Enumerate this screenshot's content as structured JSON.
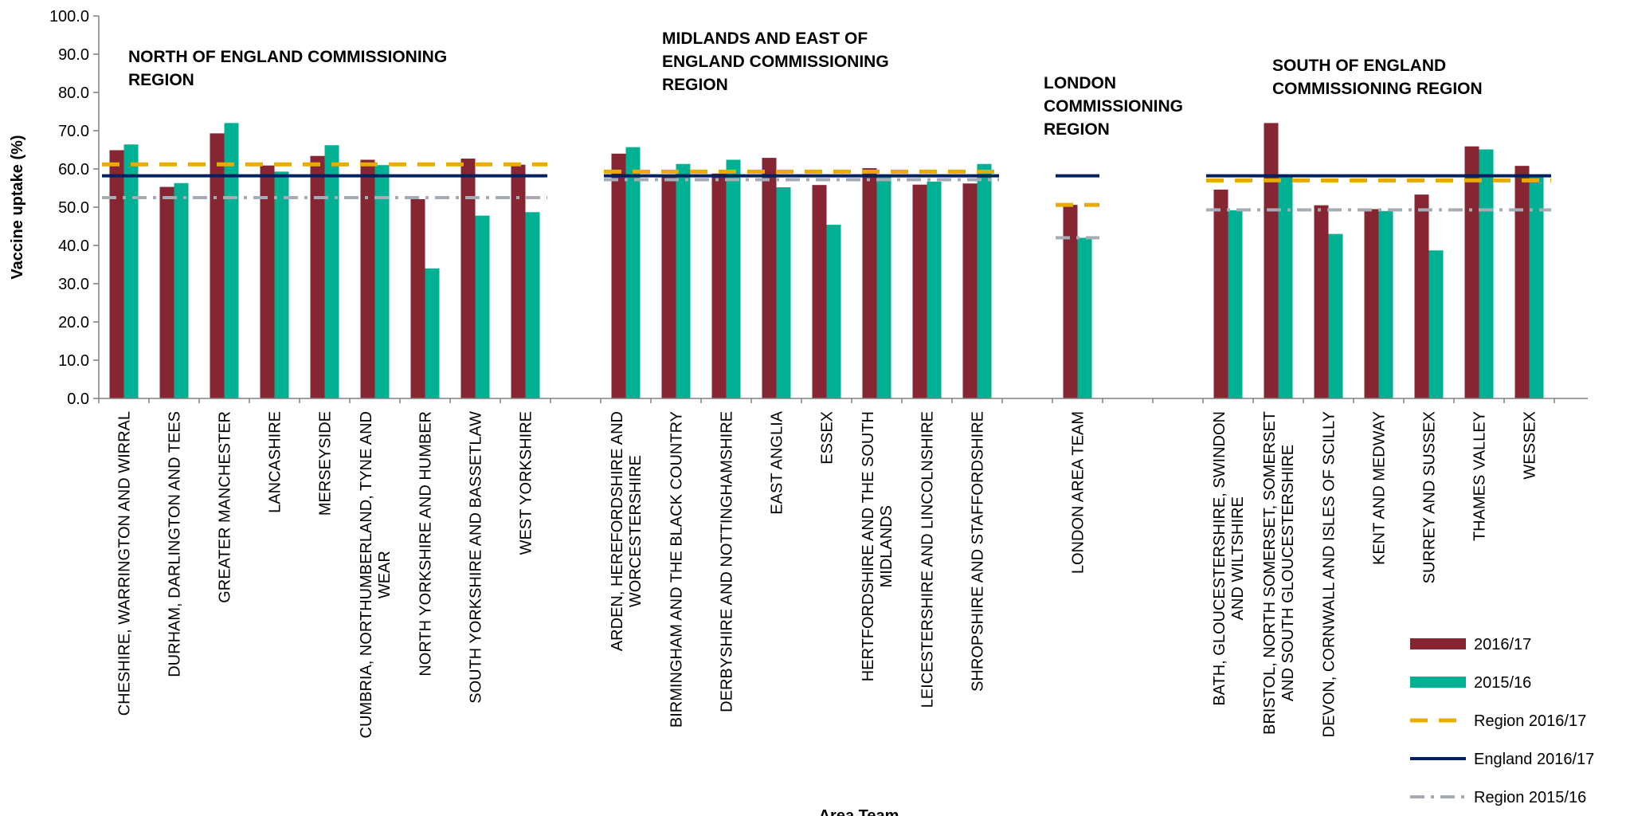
{
  "chart_data": {
    "type": "bar",
    "title": "",
    "xlabel": "Area Team",
    "ylabel": "Vaccine uptake (%)",
    "ylim": [
      0,
      100
    ],
    "y_ticks": [
      "0.0",
      "10.0",
      "20.0",
      "30.0",
      "40.0",
      "50.0",
      "60.0",
      "70.0",
      "80.0",
      "90.0",
      "100.0"
    ],
    "grid": false,
    "legend_position": "bottom-right",
    "regions": [
      {
        "label": "NORTH OF ENGLAND COMMISSIONING REGION",
        "label_lines": [
          "NORTH OF ENGLAND COMMISSIONING",
          "REGION"
        ],
        "region_2016_17": 61.2,
        "region_2015_16": 52.5,
        "categories": [
          {
            "name": "CHESHIRE, WARRINGTON AND WIRRAL",
            "label_lines": [
              "CHESHIRE, WARRINGTON AND WIRRAL"
            ],
            "v2016_17": 64.9,
            "v2015_16": 66.4
          },
          {
            "name": "DURHAM, DARLINGTON AND TEES",
            "label_lines": [
              "DURHAM, DARLINGTON AND TEES"
            ],
            "v2016_17": 55.3,
            "v2015_16": 56.3
          },
          {
            "name": "GREATER MANCHESTER",
            "label_lines": [
              "GREATER MANCHESTER"
            ],
            "v2016_17": 69.3,
            "v2015_16": 72.0
          },
          {
            "name": "LANCASHIRE",
            "label_lines": [
              "LANCASHIRE"
            ],
            "v2016_17": 60.9,
            "v2015_16": 59.3
          },
          {
            "name": "MERSEYSIDE",
            "label_lines": [
              "MERSEYSIDE"
            ],
            "v2016_17": 63.4,
            "v2015_16": 66.2
          },
          {
            "name": "CUMBRIA, NORTHUMBERLAND, TYNE AND WEAR",
            "label_lines": [
              "CUMBRIA, NORTHUMBERLAND, TYNE AND",
              "WEAR"
            ],
            "v2016_17": 62.4,
            "v2015_16": 61.0
          },
          {
            "name": "NORTH YORKSHIRE AND HUMBER",
            "label_lines": [
              "NORTH YORKSHIRE AND HUMBER"
            ],
            "v2016_17": 52.1,
            "v2015_16": 34.0
          },
          {
            "name": "SOUTH YORKSHIRE AND BASSETLAW",
            "label_lines": [
              "SOUTH YORKSHIRE AND BASSETLAW"
            ],
            "v2016_17": 62.7,
            "v2015_16": 47.8
          },
          {
            "name": "WEST YORKSHIRE",
            "label_lines": [
              "WEST YORKSHIRE"
            ],
            "v2016_17": 61.1,
            "v2015_16": 48.7
          }
        ]
      },
      {
        "label": "MIDLANDS AND EAST OF ENGLAND COMMISSIONING REGION",
        "label_lines": [
          "MIDLANDS AND EAST OF",
          "ENGLAND COMMISSIONING",
          "REGION"
        ],
        "region_2016_17": 59.3,
        "region_2015_16": 57.2,
        "categories": [
          {
            "name": "ARDEN, HEREFORDSHIRE AND WORCESTERSHIRE",
            "label_lines": [
              "ARDEN, HEREFORDSHIRE AND",
              "WORCESTERSHIRE"
            ],
            "v2016_17": 64.0,
            "v2015_16": 65.7
          },
          {
            "name": "BIRMINGHAM AND THE BLACK COUNTRY",
            "label_lines": [
              "BIRMINGHAM AND THE BLACK COUNTRY"
            ],
            "v2016_17": 58.5,
            "v2015_16": 61.3
          },
          {
            "name": "DERBYSHIRE AND NOTTINGHAMSHIRE",
            "label_lines": [
              "DERBYSHIRE AND NOTTINGHAMSHIRE"
            ],
            "v2016_17": 58.8,
            "v2015_16": 62.4
          },
          {
            "name": "EAST ANGLIA",
            "label_lines": [
              "EAST ANGLIA"
            ],
            "v2016_17": 62.9,
            "v2015_16": 55.2
          },
          {
            "name": "ESSEX",
            "label_lines": [
              "ESSEX"
            ],
            "v2016_17": 55.8,
            "v2015_16": 45.4
          },
          {
            "name": "HERTFORDSHIRE AND THE SOUTH MIDLANDS",
            "label_lines": [
              "HERTFORDSHIRE AND THE SOUTH",
              "MIDLANDS"
            ],
            "v2016_17": 60.2,
            "v2015_16": 57.8
          },
          {
            "name": "LEICESTERSHIRE AND LINCOLNSHIRE",
            "label_lines": [
              "LEICESTERSHIRE AND LINCOLNSHIRE"
            ],
            "v2016_17": 55.9,
            "v2015_16": 56.7
          },
          {
            "name": "SHROPSHIRE AND STAFFORDSHIRE",
            "label_lines": [
              "SHROPSHIRE AND STAFFORDSHIRE"
            ],
            "v2016_17": 56.2,
            "v2015_16": 61.3
          }
        ]
      },
      {
        "label": "LONDON COMMISSIONING REGION",
        "label_lines": [
          "LONDON",
          "COMMISSIONING",
          "REGION"
        ],
        "region_2016_17": 50.6,
        "region_2015_16": 42.0,
        "categories": [
          {
            "name": "LONDON AREA TEAM",
            "label_lines": [
              "LONDON AREA TEAM"
            ],
            "v2016_17": 50.6,
            "v2015_16": 42.0
          }
        ]
      },
      {
        "label": "SOUTH OF ENGLAND COMMISSIONING REGION",
        "label_lines": [
          "SOUTH OF ENGLAND",
          "COMMISSIONING REGION"
        ],
        "region_2016_17": 57.0,
        "region_2015_16": 49.3,
        "categories": [
          {
            "name": "BATH, GLOUCESTERSHIRE, SWINDON AND WILTSHIRE",
            "label_lines": [
              "BATH, GLOUCESTERSHIRE, SWINDON",
              "AND WILTSHIRE"
            ],
            "v2016_17": 54.6,
            "v2015_16": 49.2
          },
          {
            "name": "BRISTOL, NORTH SOMERSET, SOMERSET AND SOUTH GLOUCESTERSHIRE",
            "label_lines": [
              "BRISTOL, NORTH SOMERSET, SOMERSET",
              "AND SOUTH GLOUCESTERSHIRE"
            ],
            "v2016_17": 72.0,
            "v2015_16": 58.5
          },
          {
            "name": "DEVON, CORNWALL AND ISLES OF SCILLY",
            "label_lines": [
              "DEVON, CORNWALL AND ISLES OF SCILLY"
            ],
            "v2016_17": 50.5,
            "v2015_16": 43.0
          },
          {
            "name": "KENT AND MEDWAY",
            "label_lines": [
              "KENT AND MEDWAY"
            ],
            "v2016_17": 49.5,
            "v2015_16": 49.0
          },
          {
            "name": "SURREY AND SUSSEX",
            "label_lines": [
              "SURREY AND SUSSEX"
            ],
            "v2016_17": 53.3,
            "v2015_16": 38.7
          },
          {
            "name": "THAMES VALLEY",
            "label_lines": [
              "THAMES VALLEY"
            ],
            "v2016_17": 65.9,
            "v2015_16": 65.1
          },
          {
            "name": "WESSEX",
            "label_lines": [
              "WESSEX"
            ],
            "v2016_17": 60.8,
            "v2015_16": 58.3
          }
        ]
      }
    ],
    "england_2016_17": 58.2,
    "series": [
      {
        "name": "2016/17",
        "color": "#862633",
        "style": "bar"
      },
      {
        "name": "2015/16",
        "color": "#00B092",
        "style": "bar"
      },
      {
        "name": "Region 2016/17",
        "color": "#EAAB00",
        "style": "dashed-line"
      },
      {
        "name": "England 2016/17",
        "color": "#002060",
        "style": "solid-line"
      },
      {
        "name": "Region 2015/16",
        "color": "#A6ACB3",
        "style": "dash-dot-line"
      }
    ]
  }
}
